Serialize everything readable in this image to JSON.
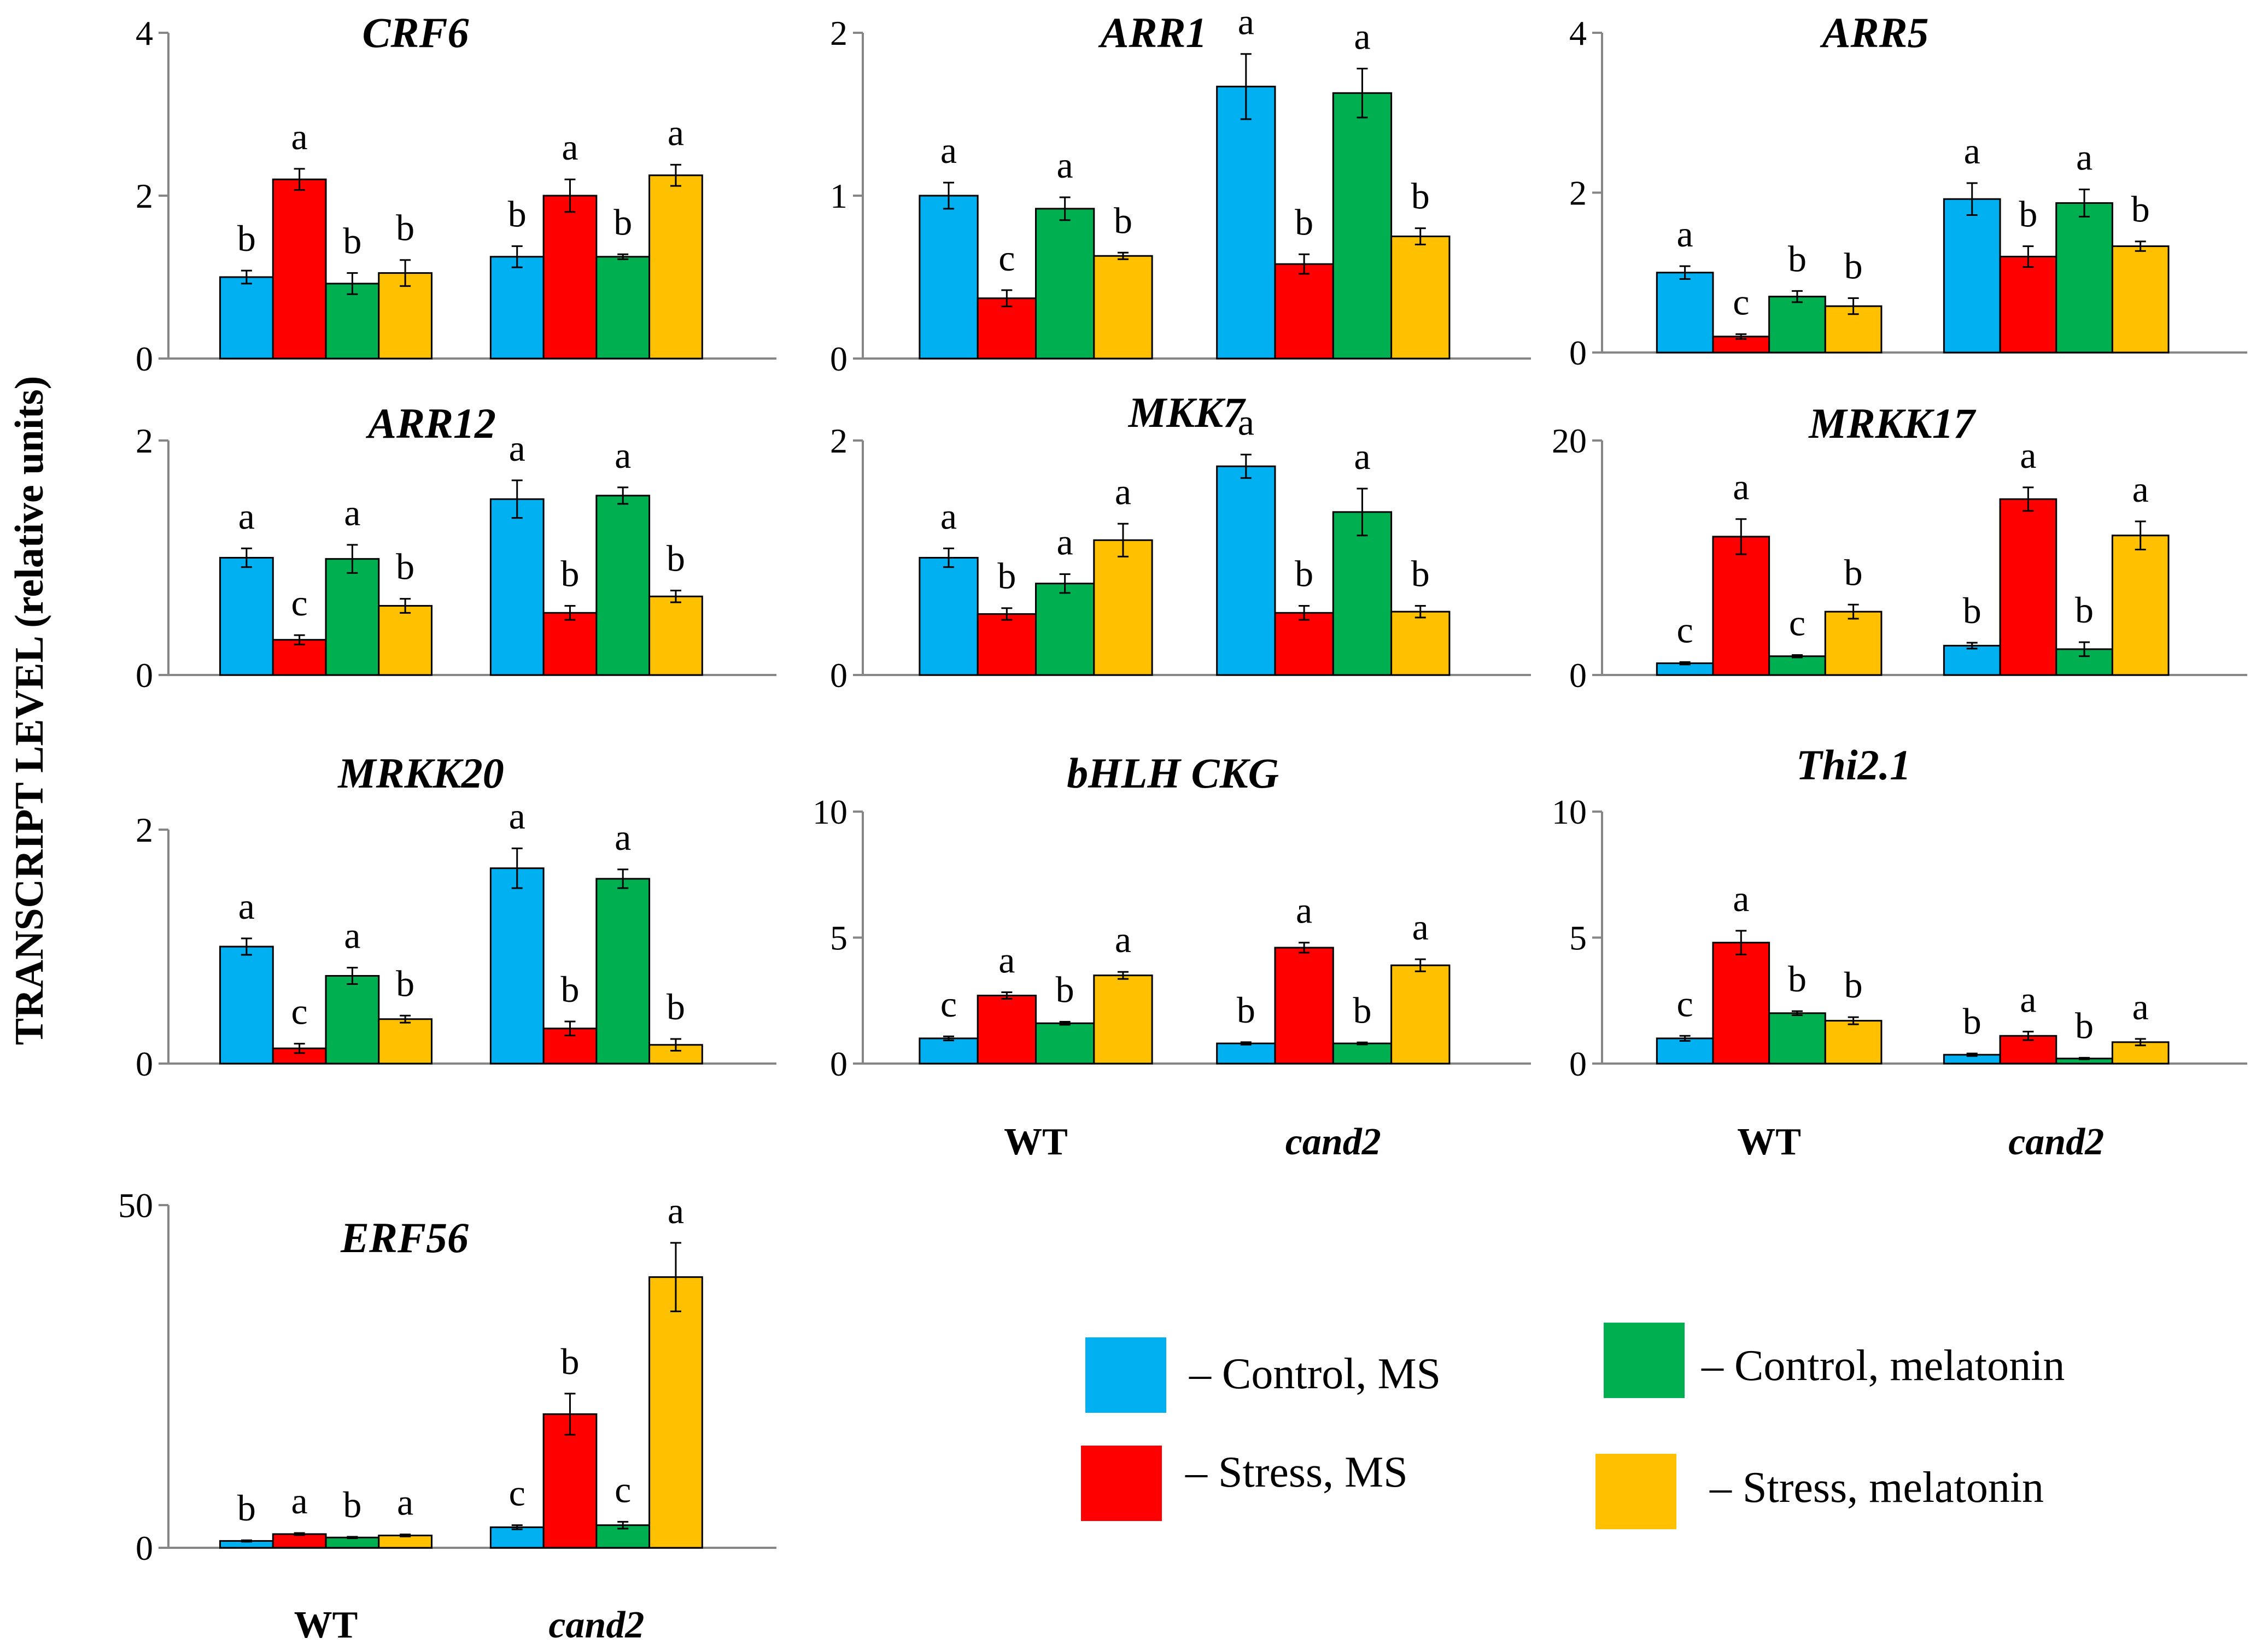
{
  "y_axis_title": "TRANSCRIPT  LEVEL (relative units)",
  "groups": [
    "WT",
    "cand2"
  ],
  "colors": {
    "Control, MS": "#00B0F0",
    "Stress, MS": "#FF0000",
    "Control, melatonin": "#00B050",
    "Stress, melatonin": "#FFC000"
  },
  "legend": [
    {
      "label": "– Control, MS",
      "series": "Control, MS"
    },
    {
      "label": "– Stress, MS",
      "series": "Stress, MS"
    },
    {
      "label": "– Control, melatonin",
      "series": "Control, melatonin"
    },
    {
      "label": "– Stress, melatonin",
      "series": "Stress, melatonin"
    }
  ],
  "chart_data": [
    {
      "type": "bar",
      "title": "CRF6",
      "categories": [
        "WT",
        "cand2"
      ],
      "ylim": [
        0,
        4
      ],
      "yticks": [
        "0",
        "2",
        "4"
      ],
      "show_group_labels": false,
      "series": [
        {
          "name": "Control, MS",
          "values": [
            1.0,
            1.25
          ],
          "errors": [
            0.08,
            0.13
          ],
          "letters": [
            "b",
            "b"
          ]
        },
        {
          "name": "Stress, MS",
          "values": [
            2.2,
            2.0
          ],
          "errors": [
            0.13,
            0.2
          ],
          "letters": [
            "a",
            "a"
          ]
        },
        {
          "name": "Control, melatonin",
          "values": [
            0.92,
            1.25
          ],
          "errors": [
            0.13,
            0.03
          ],
          "letters": [
            "b",
            "b"
          ]
        },
        {
          "name": "Stress, melatonin",
          "values": [
            1.05,
            2.25
          ],
          "errors": [
            0.16,
            0.13
          ],
          "letters": [
            "b",
            "a"
          ]
        }
      ]
    },
    {
      "type": "bar",
      "title": "ARR1",
      "categories": [
        "WT",
        "cand2"
      ],
      "ylim": [
        0,
        2
      ],
      "yticks": [
        "0",
        "1",
        "2"
      ],
      "show_group_labels": false,
      "series": [
        {
          "name": "Control, MS",
          "values": [
            1.0,
            1.67
          ],
          "errors": [
            0.08,
            0.2
          ],
          "letters": [
            "a",
            "a"
          ]
        },
        {
          "name": "Stress, MS",
          "values": [
            0.37,
            0.58
          ],
          "errors": [
            0.05,
            0.06
          ],
          "letters": [
            "c",
            "b"
          ]
        },
        {
          "name": "Control, melatonin",
          "values": [
            0.92,
            1.63
          ],
          "errors": [
            0.07,
            0.15
          ],
          "letters": [
            "a",
            "a"
          ]
        },
        {
          "name": "Stress, melatonin",
          "values": [
            0.63,
            0.75
          ],
          "errors": [
            0.02,
            0.05
          ],
          "letters": [
            "b",
            "b"
          ]
        }
      ]
    },
    {
      "type": "bar",
      "title": "ARR5",
      "categories": [
        "WT",
        "cand2"
      ],
      "ylim": [
        0,
        4
      ],
      "yticks": [
        "0",
        "2",
        "4"
      ],
      "show_group_labels": false,
      "series": [
        {
          "name": "Control, MS",
          "values": [
            1.0,
            1.92
          ],
          "errors": [
            0.08,
            0.2
          ],
          "letters": [
            "a",
            "a"
          ]
        },
        {
          "name": "Stress, MS",
          "values": [
            0.2,
            1.2
          ],
          "errors": [
            0.03,
            0.13
          ],
          "letters": [
            "c",
            "b"
          ]
        },
        {
          "name": "Control, melatonin",
          "values": [
            0.7,
            1.87
          ],
          "errors": [
            0.07,
            0.17
          ],
          "letters": [
            "b",
            "a"
          ]
        },
        {
          "name": "Stress, melatonin",
          "values": [
            0.58,
            1.33
          ],
          "errors": [
            0.1,
            0.06
          ],
          "letters": [
            "b",
            "b"
          ]
        }
      ]
    },
    {
      "type": "bar",
      "title": "ARR12",
      "categories": [
        "WT",
        "cand2"
      ],
      "ylim": [
        0,
        2
      ],
      "yticks": [
        "0",
        "2"
      ],
      "show_group_labels": false,
      "series": [
        {
          "name": "Control, MS",
          "values": [
            1.0,
            1.5
          ],
          "errors": [
            0.08,
            0.16
          ],
          "letters": [
            "a",
            "a"
          ]
        },
        {
          "name": "Stress, MS",
          "values": [
            0.3,
            0.53
          ],
          "errors": [
            0.04,
            0.06
          ],
          "letters": [
            "c",
            "b"
          ]
        },
        {
          "name": "Control, melatonin",
          "values": [
            0.99,
            1.53
          ],
          "errors": [
            0.12,
            0.07
          ],
          "letters": [
            "a",
            "a"
          ]
        },
        {
          "name": "Stress, melatonin",
          "values": [
            0.59,
            0.67
          ],
          "errors": [
            0.06,
            0.05
          ],
          "letters": [
            "b",
            "b"
          ]
        }
      ]
    },
    {
      "type": "bar",
      "title": "MKK7",
      "categories": [
        "WT",
        "cand2"
      ],
      "ylim": [
        0,
        2
      ],
      "yticks": [
        "0",
        "2"
      ],
      "show_group_labels": false,
      "series": [
        {
          "name": "Control, MS",
          "values": [
            1.0,
            1.78
          ],
          "errors": [
            0.08,
            0.1
          ],
          "letters": [
            "a",
            "a"
          ]
        },
        {
          "name": "Stress, MS",
          "values": [
            0.52,
            0.53
          ],
          "errors": [
            0.05,
            0.06
          ],
          "letters": [
            "b",
            "b"
          ]
        },
        {
          "name": "Control, melatonin",
          "values": [
            0.78,
            1.39
          ],
          "errors": [
            0.08,
            0.2
          ],
          "letters": [
            "a",
            "a"
          ]
        },
        {
          "name": "Stress, melatonin",
          "values": [
            1.15,
            0.54
          ],
          "errors": [
            0.14,
            0.05
          ],
          "letters": [
            "a",
            "b"
          ]
        }
      ]
    },
    {
      "type": "bar",
      "title": "MRKK17",
      "categories": [
        "WT",
        "cand2"
      ],
      "ylim": [
        0,
        20
      ],
      "yticks": [
        "0",
        "20"
      ],
      "show_group_labels": false,
      "series": [
        {
          "name": "Control, MS",
          "values": [
            1.0,
            2.5
          ],
          "errors": [
            0.1,
            0.25
          ],
          "letters": [
            "c",
            "b"
          ]
        },
        {
          "name": "Stress, MS",
          "values": [
            11.8,
            15.0
          ],
          "errors": [
            1.5,
            1.0
          ],
          "letters": [
            "a",
            "a"
          ]
        },
        {
          "name": "Control, melatonin",
          "values": [
            1.6,
            2.2
          ],
          "errors": [
            0.1,
            0.6
          ],
          "letters": [
            "c",
            "b"
          ]
        },
        {
          "name": "Stress, melatonin",
          "values": [
            5.4,
            11.9
          ],
          "errors": [
            0.6,
            1.2
          ],
          "letters": [
            "b",
            "a"
          ]
        }
      ]
    },
    {
      "type": "bar",
      "title": "MRKK20",
      "categories": [
        "WT",
        "cand2"
      ],
      "ylim": [
        0,
        2
      ],
      "yticks": [
        "0",
        "2"
      ],
      "show_group_labels": false,
      "series": [
        {
          "name": "Control, MS",
          "values": [
            1.0,
            1.67
          ],
          "errors": [
            0.07,
            0.17
          ],
          "letters": [
            "a",
            "a"
          ]
        },
        {
          "name": "Stress, MS",
          "values": [
            0.13,
            0.3
          ],
          "errors": [
            0.04,
            0.06
          ],
          "letters": [
            "c",
            "b"
          ]
        },
        {
          "name": "Control, melatonin",
          "values": [
            0.75,
            1.58
          ],
          "errors": [
            0.07,
            0.08
          ],
          "letters": [
            "a",
            "a"
          ]
        },
        {
          "name": "Stress, melatonin",
          "values": [
            0.38,
            0.16
          ],
          "errors": [
            0.03,
            0.05
          ],
          "letters": [
            "b",
            "b"
          ]
        }
      ]
    },
    {
      "type": "bar",
      "title": "bHLH CKG",
      "categories": [
        "WT",
        "cand2"
      ],
      "ylim": [
        0,
        10
      ],
      "yticks": [
        "0",
        "5",
        "10"
      ],
      "show_group_labels": true,
      "series": [
        {
          "name": "Control, MS",
          "values": [
            1.0,
            0.8
          ],
          "errors": [
            0.08,
            0.05
          ],
          "letters": [
            "c",
            "b"
          ]
        },
        {
          "name": "Stress, MS",
          "values": [
            2.7,
            4.6
          ],
          "errors": [
            0.13,
            0.2
          ],
          "letters": [
            "a",
            "a"
          ]
        },
        {
          "name": "Control, melatonin",
          "values": [
            1.6,
            0.8
          ],
          "errors": [
            0.06,
            0.04
          ],
          "letters": [
            "b",
            "b"
          ]
        },
        {
          "name": "Stress, melatonin",
          "values": [
            3.5,
            3.9
          ],
          "errors": [
            0.14,
            0.24
          ],
          "letters": [
            "a",
            "a"
          ]
        }
      ]
    },
    {
      "type": "bar",
      "title": "Thi2.1",
      "categories": [
        "WT",
        "cand2"
      ],
      "ylim": [
        0,
        10
      ],
      "yticks": [
        "0",
        "5",
        "10"
      ],
      "show_group_labels": true,
      "series": [
        {
          "name": "Control, MS",
          "values": [
            1.0,
            0.35
          ],
          "errors": [
            0.1,
            0.05
          ],
          "letters": [
            "c",
            "b"
          ]
        },
        {
          "name": "Stress, MS",
          "values": [
            4.8,
            1.1
          ],
          "errors": [
            0.47,
            0.17
          ],
          "letters": [
            "a",
            "a"
          ]
        },
        {
          "name": "Control, melatonin",
          "values": [
            2.0,
            0.2
          ],
          "errors": [
            0.08,
            0.03
          ],
          "letters": [
            "b",
            "b"
          ]
        },
        {
          "name": "Stress, melatonin",
          "values": [
            1.7,
            0.85
          ],
          "errors": [
            0.14,
            0.13
          ],
          "letters": [
            "b",
            "a"
          ]
        }
      ]
    },
    {
      "type": "bar",
      "title": "ERF56",
      "categories": [
        "WT",
        "cand2"
      ],
      "ylim": [
        0,
        50
      ],
      "yticks": [
        "0",
        "50"
      ],
      "show_group_labels": true,
      "series": [
        {
          "name": "Control, MS",
          "values": [
            1.0,
            3.0
          ],
          "errors": [
            0.1,
            0.3
          ],
          "letters": [
            "b",
            "c"
          ]
        },
        {
          "name": "Stress, MS",
          "values": [
            2.0,
            19.5
          ],
          "errors": [
            0.15,
            3.0
          ],
          "letters": [
            "a",
            "b"
          ]
        },
        {
          "name": "Control, melatonin",
          "values": [
            1.5,
            3.3
          ],
          "errors": [
            0.1,
            0.5
          ],
          "letters": [
            "b",
            "c"
          ]
        },
        {
          "name": "Stress, melatonin",
          "values": [
            1.8,
            39.5
          ],
          "errors": [
            0.15,
            5.0
          ],
          "letters": [
            "a",
            "a"
          ]
        }
      ]
    }
  ]
}
